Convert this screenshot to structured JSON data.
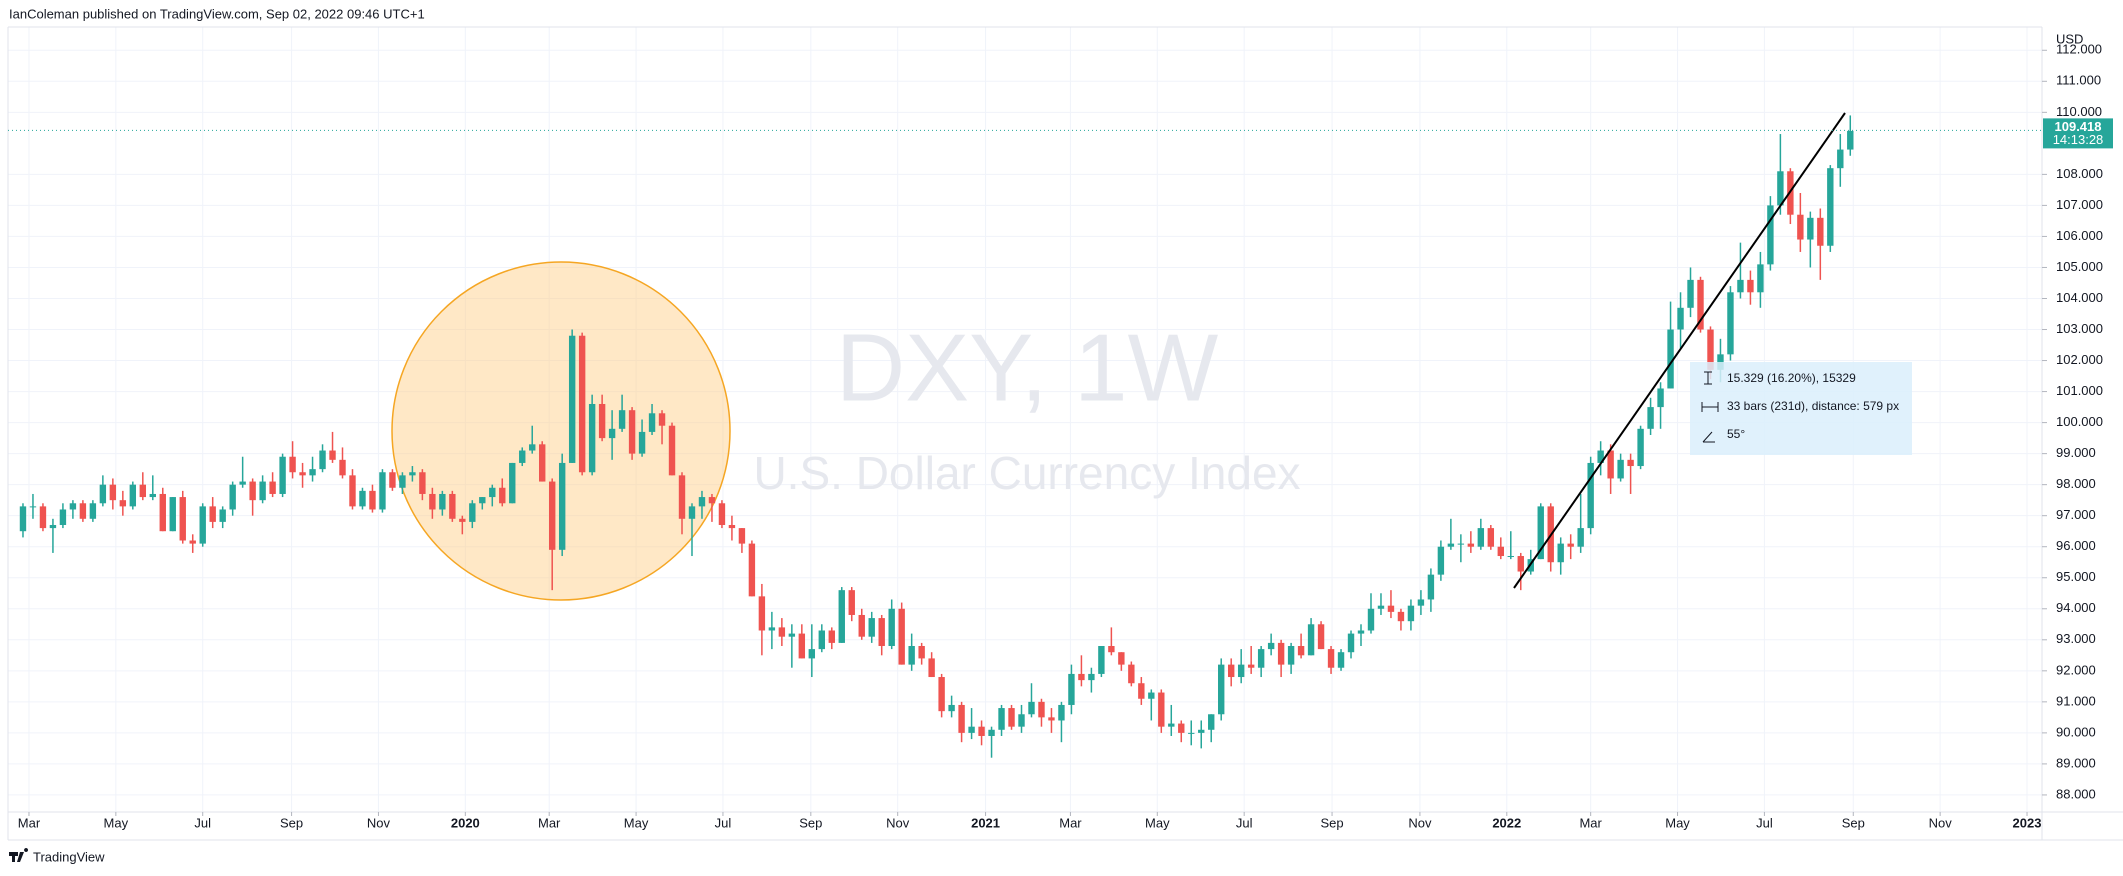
{
  "header": "IanColeman published on TradingView.com, Sep 02, 2022 09:46 UTC+1",
  "footer": "TradingView",
  "measure": {
    "price": "15.329 (16.20%), 15329",
    "bars": "33 bars (231d), distance: 579 px",
    "angle": "55°"
  },
  "chart_data": {
    "type": "candlestick",
    "symbol": "DXY, 1W",
    "description": "U.S. Dollar Currency Index",
    "currency": "USD",
    "up_color": "#26a69a",
    "down_color": "#ef5350",
    "grid": true,
    "last_price": 109.418,
    "countdown": "14:13:28",
    "xlim": [
      -1.5,
      202.2
    ],
    "xticks": [
      {
        "value": 0.6,
        "label": "Mar"
      },
      {
        "value": 9.3,
        "label": "May"
      },
      {
        "value": 18,
        "label": "Jul"
      },
      {
        "value": 26.9,
        "label": "Sep"
      },
      {
        "value": 35.6,
        "label": "Nov"
      },
      {
        "value": 44.3,
        "label": "2020"
      },
      {
        "value": 52.7,
        "label": "Mar"
      },
      {
        "value": 61.4,
        "label": "May"
      },
      {
        "value": 70.1,
        "label": "Jul"
      },
      {
        "value": 78.9,
        "label": "Sep"
      },
      {
        "value": 87.6,
        "label": "Nov"
      },
      {
        "value": 96.4,
        "label": "2021"
      },
      {
        "value": 104.9,
        "label": "Mar"
      },
      {
        "value": 113.6,
        "label": "May"
      },
      {
        "value": 122.3,
        "label": "Jul"
      },
      {
        "value": 131.1,
        "label": "Sep"
      },
      {
        "value": 139.9,
        "label": "Nov"
      },
      {
        "value": 148.6,
        "label": "2022"
      },
      {
        "value": 157,
        "label": "Mar"
      },
      {
        "value": 165.7,
        "label": "May"
      },
      {
        "value": 174.4,
        "label": "Jul"
      },
      {
        "value": 183.3,
        "label": "Sep"
      },
      {
        "value": 192,
        "label": "Nov"
      },
      {
        "value": 200.7,
        "label": "2023"
      }
    ],
    "ylim": [
      87.45,
      112.75
    ],
    "yticks": [
      {
        "value": 88,
        "label": "88.000"
      },
      {
        "value": 89,
        "label": "89.000"
      },
      {
        "value": 90,
        "label": "90.000"
      },
      {
        "value": 91,
        "label": "91.000"
      },
      {
        "value": 92,
        "label": "92.000"
      },
      {
        "value": 93,
        "label": "93.000"
      },
      {
        "value": 94,
        "label": "94.000"
      },
      {
        "value": 95,
        "label": "95.000"
      },
      {
        "value": 96,
        "label": "96.000"
      },
      {
        "value": 97,
        "label": "97.000"
      },
      {
        "value": 98,
        "label": "98.000"
      },
      {
        "value": 99,
        "label": "99.000"
      },
      {
        "value": 100,
        "label": "100.000"
      },
      {
        "value": 101,
        "label": "101.000"
      },
      {
        "value": 102,
        "label": "102.000"
      },
      {
        "value": 103,
        "label": "103.000"
      },
      {
        "value": 104,
        "label": "104.000"
      },
      {
        "value": 105,
        "label": "105.000"
      },
      {
        "value": 106,
        "label": "106.000"
      },
      {
        "value": 107,
        "label": "107.000"
      },
      {
        "value": 108,
        "label": "108.000"
      },
      {
        "value": 110,
        "label": "110.000"
      },
      {
        "value": 111,
        "label": "111.000"
      },
      {
        "value": 112,
        "label": "112.000"
      }
    ],
    "ohlc": [
      [
        96.5,
        97.4,
        96.3,
        97.3
      ],
      [
        97.3,
        97.7,
        96.9,
        97.3
      ],
      [
        97.3,
        97.4,
        96.5,
        96.6
      ],
      [
        96.6,
        96.9,
        95.8,
        96.7
      ],
      [
        96.7,
        97.4,
        96.6,
        97.2
      ],
      [
        97.2,
        97.5,
        96.9,
        97.4
      ],
      [
        97.4,
        97.5,
        96.8,
        96.9
      ],
      [
        96.9,
        97.5,
        96.8,
        97.4
      ],
      [
        97.4,
        98.3,
        97.3,
        98.0
      ],
      [
        98.0,
        98.2,
        97.2,
        97.5
      ],
      [
        97.5,
        97.8,
        97.0,
        97.3
      ],
      [
        97.3,
        98.1,
        97.2,
        98.0
      ],
      [
        98.0,
        98.4,
        97.5,
        97.6
      ],
      [
        97.6,
        98.3,
        97.5,
        97.7
      ],
      [
        97.7,
        97.9,
        96.5,
        96.5
      ],
      [
        96.5,
        97.6,
        96.5,
        97.6
      ],
      [
        97.6,
        97.8,
        96.1,
        96.2
      ],
      [
        96.2,
        96.4,
        95.8,
        96.1
      ],
      [
        96.1,
        97.4,
        96.0,
        97.3
      ],
      [
        97.3,
        97.6,
        96.6,
        96.8
      ],
      [
        96.8,
        97.3,
        96.6,
        97.2
      ],
      [
        97.2,
        98.1,
        97.0,
        98.0
      ],
      [
        98.0,
        98.9,
        97.9,
        98.1
      ],
      [
        98.1,
        98.2,
        97.0,
        97.5
      ],
      [
        97.5,
        98.3,
        97.4,
        98.1
      ],
      [
        98.1,
        98.4,
        97.6,
        97.7
      ],
      [
        97.7,
        99.0,
        97.6,
        98.9
      ],
      [
        98.9,
        99.4,
        98.2,
        98.4
      ],
      [
        98.4,
        98.7,
        97.9,
        98.3
      ],
      [
        98.3,
        98.9,
        98.1,
        98.5
      ],
      [
        98.5,
        99.3,
        98.4,
        99.1
      ],
      [
        99.1,
        99.7,
        98.7,
        98.8
      ],
      [
        98.8,
        99.2,
        98.2,
        98.3
      ],
      [
        98.3,
        98.5,
        97.2,
        97.3
      ],
      [
        97.3,
        97.9,
        97.2,
        97.8
      ],
      [
        97.8,
        98.0,
        97.1,
        97.2
      ],
      [
        97.2,
        98.5,
        97.1,
        98.4
      ],
      [
        98.4,
        98.5,
        97.8,
        97.9
      ],
      [
        97.9,
        98.4,
        97.7,
        98.3
      ],
      [
        98.3,
        98.6,
        98.1,
        98.4
      ],
      [
        98.4,
        98.5,
        97.5,
        97.7
      ],
      [
        97.7,
        97.9,
        96.9,
        97.2
      ],
      [
        97.2,
        97.8,
        97.0,
        97.7
      ],
      [
        97.7,
        97.8,
        96.8,
        96.9
      ],
      [
        96.9,
        97.0,
        96.4,
        96.8
      ],
      [
        96.8,
        97.5,
        96.6,
        97.4
      ],
      [
        97.4,
        97.6,
        97.2,
        97.6
      ],
      [
        97.6,
        98.0,
        97.3,
        97.9
      ],
      [
        97.9,
        98.2,
        97.3,
        97.4
      ],
      [
        97.4,
        98.7,
        97.4,
        98.7
      ],
      [
        98.7,
        99.2,
        98.6,
        99.1
      ],
      [
        99.1,
        99.9,
        99.0,
        99.3
      ],
      [
        99.3,
        99.4,
        98.1,
        98.1
      ],
      [
        98.1,
        98.2,
        94.6,
        95.9
      ],
      [
        95.9,
        99.0,
        95.7,
        98.7
      ],
      [
        98.7,
        103.0,
        98.7,
        102.8
      ],
      [
        102.8,
        102.9,
        98.3,
        98.4
      ],
      [
        98.4,
        100.9,
        98.3,
        100.6
      ],
      [
        100.6,
        100.9,
        99.4,
        99.5
      ],
      [
        99.5,
        100.4,
        98.8,
        99.8
      ],
      [
        99.8,
        100.9,
        99.7,
        100.4
      ],
      [
        100.4,
        100.5,
        98.8,
        99.0
      ],
      [
        99.0,
        100.1,
        98.9,
        99.7
      ],
      [
        99.7,
        100.6,
        99.6,
        100.3
      ],
      [
        100.3,
        100.4,
        99.3,
        99.9
      ],
      [
        99.9,
        100.0,
        98.3,
        98.3
      ],
      [
        98.3,
        98.4,
        96.4,
        96.9
      ],
      [
        96.9,
        97.4,
        95.7,
        97.3
      ],
      [
        97.3,
        97.8,
        96.9,
        97.6
      ],
      [
        97.6,
        97.7,
        96.8,
        97.4
      ],
      [
        97.4,
        97.5,
        96.6,
        96.7
      ],
      [
        96.7,
        97.0,
        96.2,
        96.6
      ],
      [
        96.6,
        96.6,
        95.8,
        96.1
      ],
      [
        96.1,
        96.2,
        94.4,
        94.4
      ],
      [
        94.4,
        94.8,
        92.5,
        93.3
      ],
      [
        93.3,
        93.9,
        92.7,
        93.4
      ],
      [
        93.4,
        93.7,
        92.8,
        93.1
      ],
      [
        93.1,
        93.5,
        92.1,
        93.2
      ],
      [
        93.2,
        93.5,
        92.4,
        92.4
      ],
      [
        92.4,
        93.5,
        91.8,
        92.7
      ],
      [
        92.7,
        93.5,
        92.6,
        93.3
      ],
      [
        93.3,
        93.4,
        92.7,
        92.9
      ],
      [
        92.9,
        94.7,
        92.9,
        94.6
      ],
      [
        94.6,
        94.7,
        93.6,
        93.8
      ],
      [
        93.8,
        94.0,
        93.0,
        93.1
      ],
      [
        93.1,
        93.9,
        92.9,
        93.7
      ],
      [
        93.7,
        93.8,
        92.5,
        92.8
      ],
      [
        92.8,
        94.3,
        92.7,
        94.0
      ],
      [
        94.0,
        94.2,
        92.2,
        92.2
      ],
      [
        92.2,
        93.2,
        92.0,
        92.8
      ],
      [
        92.8,
        92.9,
        92.2,
        92.4
      ],
      [
        92.4,
        92.6,
        91.8,
        91.8
      ],
      [
        91.8,
        91.9,
        90.5,
        90.7
      ],
      [
        90.7,
        91.2,
        90.5,
        90.9
      ],
      [
        90.9,
        91.0,
        89.7,
        90.0
      ],
      [
        90.0,
        90.8,
        89.8,
        90.2
      ],
      [
        90.2,
        90.4,
        89.6,
        89.9
      ],
      [
        89.9,
        90.2,
        89.2,
        90.1
      ],
      [
        90.1,
        90.9,
        89.9,
        90.8
      ],
      [
        90.8,
        90.9,
        90.1,
        90.2
      ],
      [
        90.2,
        90.9,
        90.0,
        90.6
      ],
      [
        90.6,
        91.6,
        90.5,
        91.0
      ],
      [
        91.0,
        91.1,
        90.2,
        90.5
      ],
      [
        90.5,
        90.8,
        90.0,
        90.4
      ],
      [
        90.4,
        91.0,
        89.7,
        90.9
      ],
      [
        90.9,
        92.2,
        90.6,
        91.9
      ],
      [
        91.9,
        92.5,
        91.5,
        91.7
      ],
      [
        91.7,
        92.1,
        91.3,
        91.9
      ],
      [
        91.9,
        92.8,
        91.8,
        92.8
      ],
      [
        92.8,
        93.4,
        92.5,
        92.6
      ],
      [
        92.6,
        92.6,
        92.0,
        92.2
      ],
      [
        92.2,
        92.3,
        91.5,
        91.6
      ],
      [
        91.6,
        91.8,
        90.9,
        91.1
      ],
      [
        91.1,
        91.4,
        90.4,
        91.3
      ],
      [
        91.3,
        91.4,
        90.0,
        90.2
      ],
      [
        90.2,
        90.9,
        89.9,
        90.3
      ],
      [
        90.3,
        90.4,
        89.7,
        90.0
      ],
      [
        90.0,
        90.4,
        89.6,
        90.0
      ],
      [
        90.0,
        90.4,
        89.5,
        90.1
      ],
      [
        90.1,
        90.6,
        89.7,
        90.6
      ],
      [
        90.6,
        92.4,
        90.4,
        92.2
      ],
      [
        92.2,
        92.4,
        91.5,
        91.8
      ],
      [
        91.8,
        92.7,
        91.6,
        92.2
      ],
      [
        92.2,
        92.8,
        91.9,
        92.1
      ],
      [
        92.1,
        92.8,
        91.8,
        92.7
      ],
      [
        92.7,
        93.2,
        92.5,
        92.9
      ],
      [
        92.9,
        93.0,
        91.8,
        92.2
      ],
      [
        92.2,
        92.9,
        91.9,
        92.8
      ],
      [
        92.8,
        93.2,
        92.4,
        92.5
      ],
      [
        92.5,
        93.7,
        92.5,
        93.5
      ],
      [
        93.5,
        93.6,
        92.7,
        92.7
      ],
      [
        92.7,
        92.8,
        91.9,
        92.1
      ],
      [
        92.1,
        92.7,
        92.0,
        92.6
      ],
      [
        92.6,
        93.3,
        92.4,
        93.2
      ],
      [
        93.2,
        93.5,
        92.8,
        93.3
      ],
      [
        93.3,
        94.5,
        93.2,
        94.0
      ],
      [
        94.0,
        94.5,
        93.8,
        94.1
      ],
      [
        94.1,
        94.6,
        93.7,
        93.9
      ],
      [
        93.9,
        94.0,
        93.3,
        93.6
      ],
      [
        93.6,
        94.3,
        93.3,
        94.1
      ],
      [
        94.1,
        94.6,
        93.8,
        94.3
      ],
      [
        94.3,
        95.3,
        93.9,
        95.1
      ],
      [
        95.1,
        96.2,
        94.9,
        96.0
      ],
      [
        96.0,
        96.9,
        95.9,
        96.1
      ],
      [
        96.1,
        96.4,
        95.5,
        96.1
      ],
      [
        96.1,
        96.5,
        95.8,
        96.0
      ],
      [
        96.0,
        96.9,
        95.9,
        96.6
      ],
      [
        96.6,
        96.7,
        95.9,
        96.0
      ],
      [
        96.0,
        96.3,
        95.6,
        95.7
      ],
      [
        95.7,
        96.5,
        95.6,
        95.7
      ],
      [
        95.7,
        95.8,
        94.6,
        95.2
      ],
      [
        95.2,
        95.9,
        95.1,
        95.6
      ],
      [
        95.6,
        97.4,
        95.6,
        97.3
      ],
      [
        97.3,
        97.4,
        95.2,
        95.5
      ],
      [
        95.5,
        96.3,
        95.1,
        96.1
      ],
      [
        96.1,
        96.4,
        95.6,
        96.0
      ],
      [
        96.0,
        97.7,
        95.8,
        96.6
      ],
      [
        96.6,
        98.9,
        96.4,
        98.7
      ],
      [
        98.7,
        99.4,
        98.3,
        99.1
      ],
      [
        99.1,
        99.3,
        97.7,
        98.2
      ],
      [
        98.2,
        99.0,
        98.1,
        98.8
      ],
      [
        98.8,
        99.0,
        97.7,
        98.6
      ],
      [
        98.6,
        99.9,
        98.5,
        99.8
      ],
      [
        99.8,
        100.8,
        99.6,
        100.5
      ],
      [
        100.5,
        101.3,
        99.8,
        101.1
      ],
      [
        101.1,
        103.9,
        101.1,
        103.0
      ],
      [
        103.0,
        104.2,
        102.4,
        103.7
      ],
      [
        103.7,
        105.0,
        103.4,
        104.6
      ],
      [
        104.6,
        104.7,
        102.9,
        103.0
      ],
      [
        103.0,
        103.1,
        101.4,
        101.7
      ],
      [
        101.7,
        102.7,
        101.3,
        102.2
      ],
      [
        102.2,
        104.4,
        102.0,
        104.2
      ],
      [
        104.2,
        105.8,
        104.0,
        104.6
      ],
      [
        104.6,
        104.9,
        103.8,
        104.2
      ],
      [
        104.2,
        105.5,
        103.7,
        105.1
      ],
      [
        105.1,
        107.3,
        104.9,
        107.0
      ],
      [
        107.0,
        109.3,
        106.7,
        108.1
      ],
      [
        108.1,
        108.2,
        106.4,
        106.7
      ],
      [
        106.7,
        107.4,
        105.5,
        105.9
      ],
      [
        105.9,
        106.8,
        105.0,
        106.6
      ],
      [
        106.6,
        106.9,
        104.6,
        105.7
      ],
      [
        105.7,
        108.3,
        105.5,
        108.2
      ],
      [
        108.2,
        109.3,
        107.6,
        108.8
      ],
      [
        108.8,
        109.9,
        108.6,
        109.4
      ]
    ]
  }
}
